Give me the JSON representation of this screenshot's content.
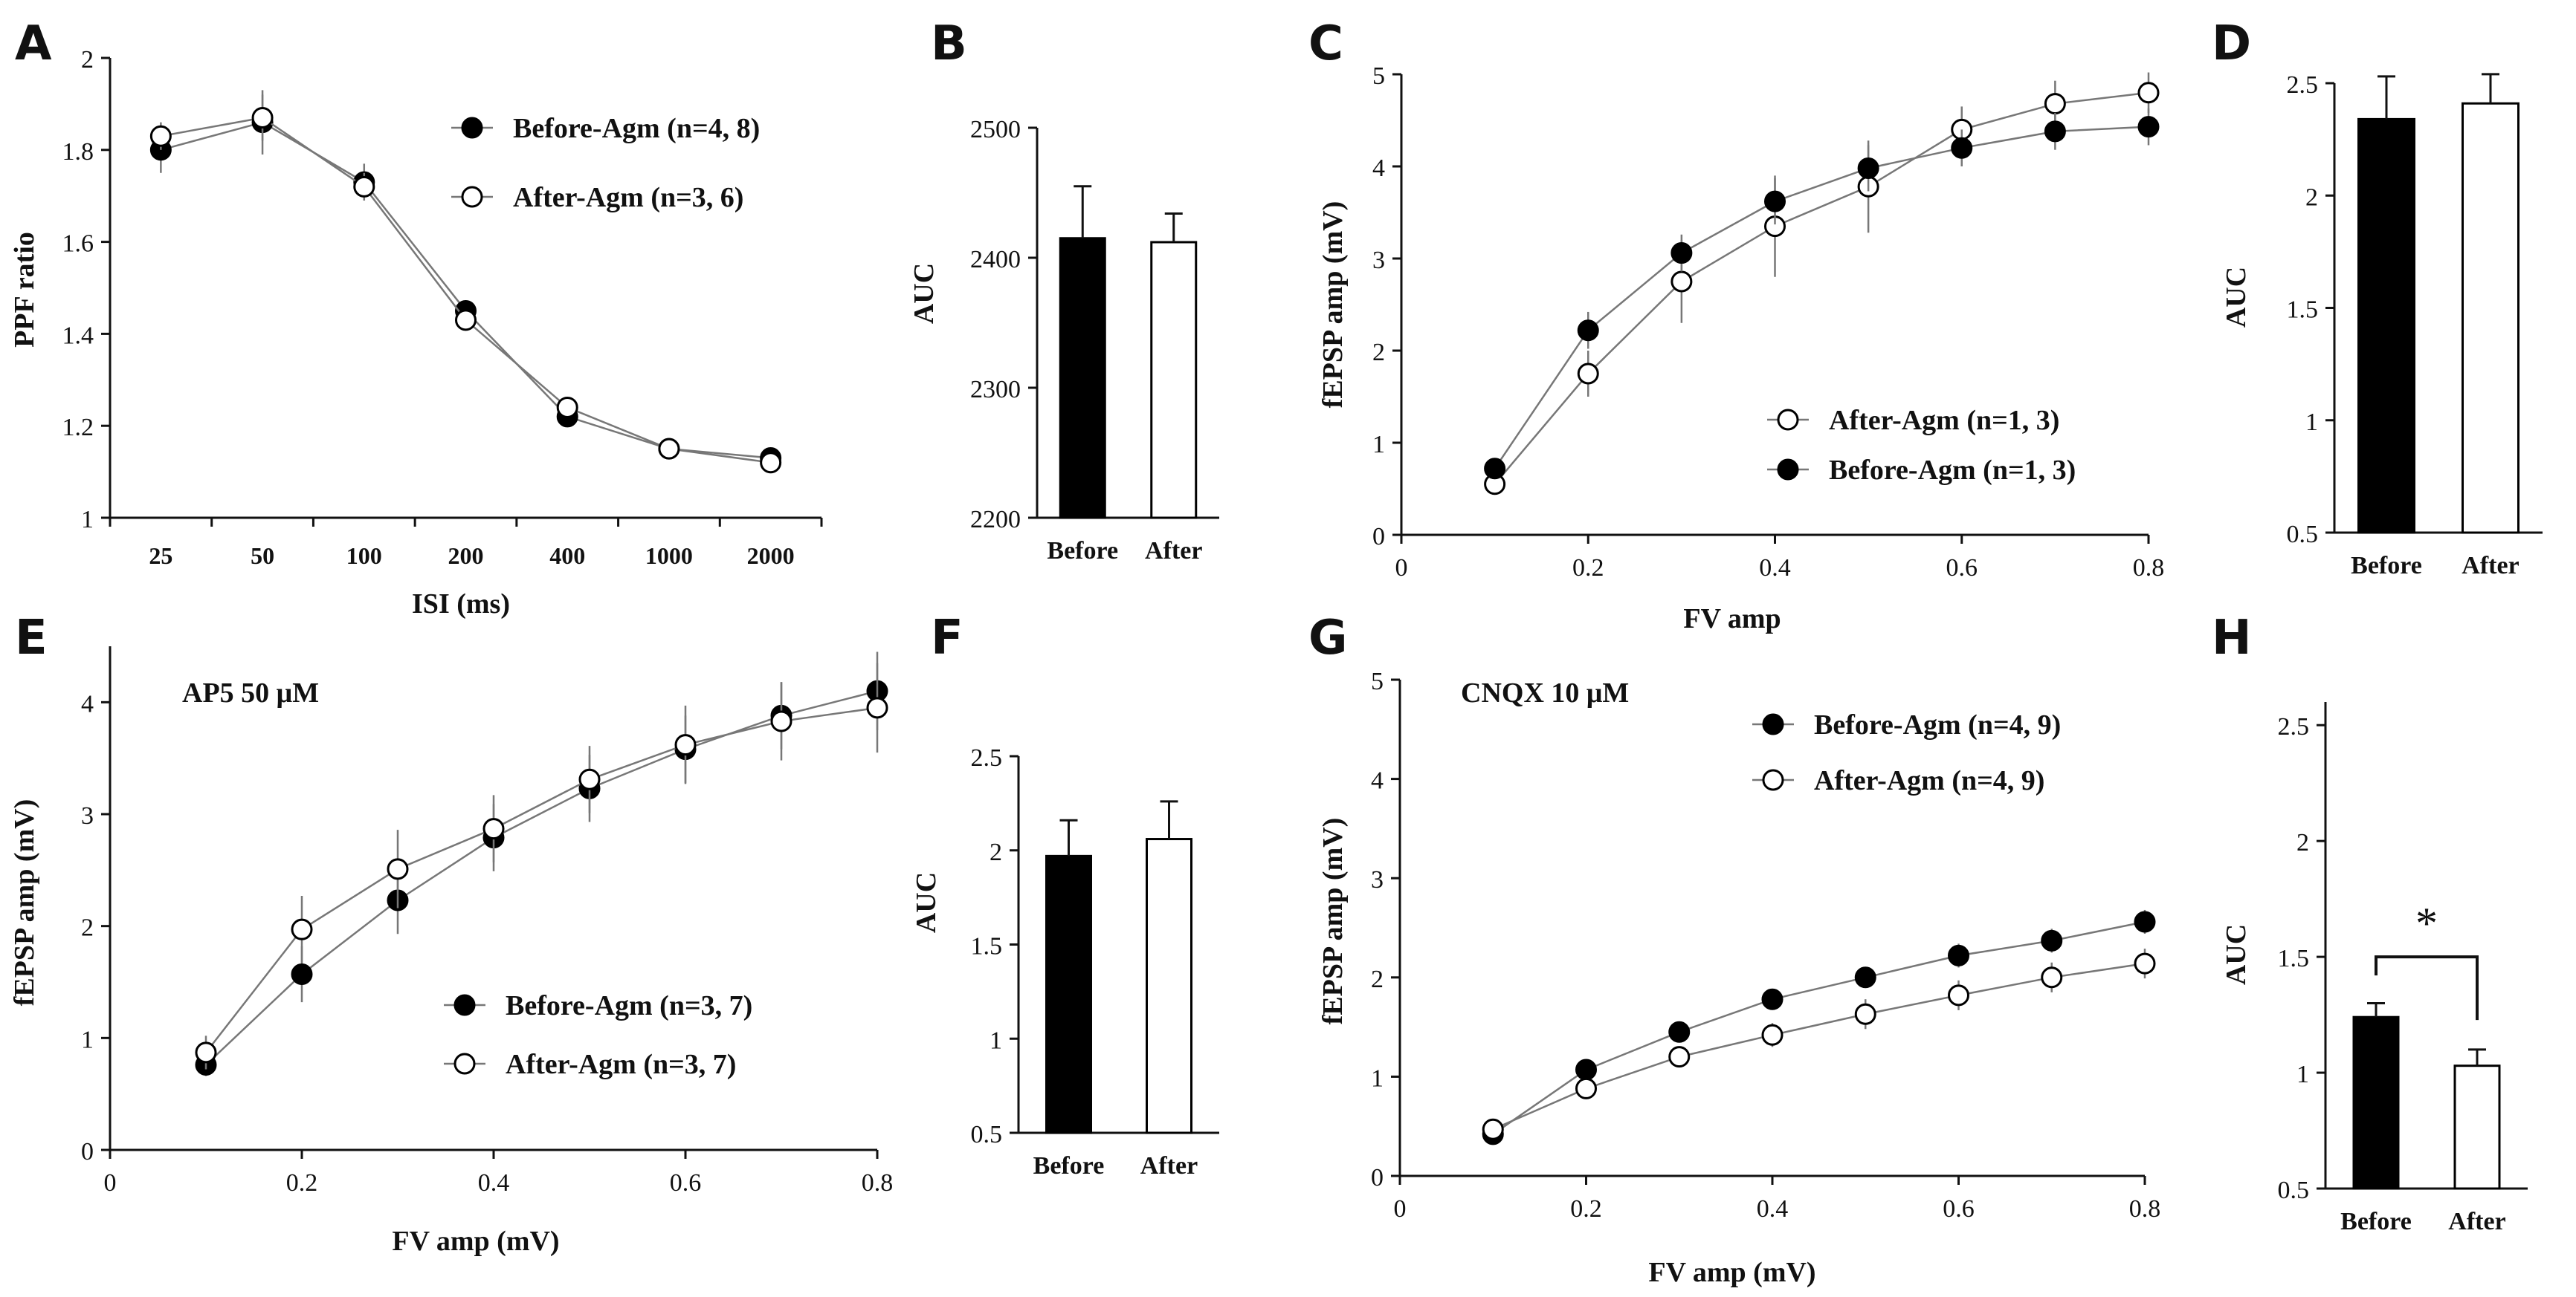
{
  "colors": {
    "ink": "#111111",
    "line": "#777777",
    "fill_before": "#000000",
    "fill_after": "#ffffff"
  },
  "chart_data": [
    {
      "panel": "A",
      "type": "line",
      "x": [
        "25",
        "50",
        "100",
        "200",
        "400",
        "1000",
        "2000"
      ],
      "xlabel": "ISI (ms)",
      "ylabel": "PPF ratio",
      "ylim": [
        1,
        2
      ],
      "yticks": [
        1,
        1.2,
        1.4,
        1.6,
        1.8,
        2
      ],
      "xticklabels": [
        "25",
        "50",
        "100",
        "200",
        "400",
        "1000",
        "2000"
      ],
      "series": [
        {
          "name": "Before-Agm (n=4, 8)",
          "marker": "filled",
          "y": [
            1.8,
            1.86,
            1.73,
            1.45,
            1.22,
            1.15,
            1.13
          ],
          "err": [
            0.05,
            0.07,
            0.04,
            0.02,
            0.02,
            0.01,
            0.01
          ]
        },
        {
          "name": "After-Agm (n=3, 6)",
          "marker": "open",
          "y": [
            1.83,
            1.87,
            1.72,
            1.43,
            1.24,
            1.15,
            1.12
          ],
          "err": [
            0.03,
            0.05,
            0.03,
            0.02,
            0.02,
            0.01,
            0.01
          ]
        }
      ],
      "legend": "top-right"
    },
    {
      "panel": "B",
      "type": "bar",
      "categories": [
        "Before",
        "After"
      ],
      "values": [
        2415,
        2412
      ],
      "err": [
        40,
        22
      ],
      "ylabel": "AUC",
      "ylim": [
        2200,
        2500
      ],
      "yticks": [
        2200,
        2300,
        2400,
        2500
      ],
      "yticklabels": [
        "2200",
        "2300",
        "2400",
        "2500"
      ]
    },
    {
      "panel": "C",
      "type": "line",
      "xlabel": "FV amp",
      "ylabel": "fEPSP amp (mV)",
      "xlim": [
        0,
        0.8
      ],
      "xticks": [
        0,
        0.2,
        0.4,
        0.6,
        0.8
      ],
      "xticklabels": [
        "0",
        "0.2",
        "0.4",
        "0.6",
        "0.8"
      ],
      "ylim": [
        0,
        5
      ],
      "yticks": [
        0,
        1,
        2,
        3,
        4,
        5
      ],
      "yticklabels": [
        "0",
        "1",
        "2",
        "3",
        "4",
        "5"
      ],
      "series": [
        {
          "name": "After-Agm (n=1, 3)",
          "marker": "open",
          "x": [
            0.1,
            0.2,
            0.3,
            0.4,
            0.5,
            0.6,
            0.7,
            0.8
          ],
          "y": [
            0.55,
            1.75,
            2.75,
            3.35,
            3.78,
            4.4,
            4.68,
            4.8
          ],
          "err": [
            0.05,
            0.25,
            0.45,
            0.55,
            0.5,
            0.25,
            0.25,
            0.22
          ]
        },
        {
          "name": "Before-Agm (n=1, 3)",
          "marker": "filled",
          "x": [
            0.1,
            0.2,
            0.3,
            0.4,
            0.5,
            0.6,
            0.7,
            0.8
          ],
          "y": [
            0.72,
            2.22,
            3.06,
            3.62,
            3.98,
            4.2,
            4.38,
            4.43
          ],
          "err": [
            0.05,
            0.2,
            0.2,
            0.25,
            0.25,
            0.2,
            0.2,
            0.2
          ]
        }
      ],
      "legend": "bottom-right"
    },
    {
      "panel": "D",
      "type": "bar",
      "categories": [
        "Before",
        "After"
      ],
      "values": [
        2.34,
        2.41
      ],
      "err": [
        0.19,
        0.13
      ],
      "ylabel": "AUC",
      "ylim": [
        0.5,
        2.5
      ],
      "yticks": [
        0.5,
        1,
        1.5,
        2,
        2.5
      ],
      "yticklabels": [
        "0.5",
        "1",
        "1.5",
        "2",
        "2.5"
      ]
    },
    {
      "panel": "E",
      "type": "line",
      "annotation": "AP5 50 μM",
      "xlabel": "FV amp (mV)",
      "ylabel": "fEPSP amp (mV)",
      "xlim": [
        0,
        0.8
      ],
      "xticks": [
        0,
        0.2,
        0.4,
        0.6,
        0.8
      ],
      "xticklabels": [
        "0",
        "0.2",
        "0.4",
        "0.6",
        "0.8"
      ],
      "ylim": [
        0,
        4.5
      ],
      "yticks": [
        0,
        1,
        2,
        3,
        4
      ],
      "yticklabels": [
        "0",
        "1",
        "2",
        "3",
        "4"
      ],
      "series": [
        {
          "name": "Before-Agm (n=3, 7)",
          "marker": "filled",
          "x": [
            0.1,
            0.2,
            0.3,
            0.4,
            0.5,
            0.6,
            0.7,
            0.8
          ],
          "y": [
            0.76,
            1.57,
            2.23,
            2.79,
            3.23,
            3.58,
            3.88,
            4.1
          ],
          "err": [
            0.1,
            0.25,
            0.3,
            0.3,
            0.3,
            0.3,
            0.3,
            0.35
          ]
        },
        {
          "name": "After-Agm (n=3, 7)",
          "marker": "open",
          "x": [
            0.1,
            0.2,
            0.3,
            0.4,
            0.5,
            0.6,
            0.7,
            0.8
          ],
          "y": [
            0.87,
            1.97,
            2.51,
            2.87,
            3.31,
            3.62,
            3.83,
            3.95
          ],
          "err": [
            0.15,
            0.3,
            0.35,
            0.3,
            0.3,
            0.35,
            0.35,
            0.4
          ]
        }
      ],
      "legend": "bottom-right"
    },
    {
      "panel": "F",
      "type": "bar",
      "categories": [
        "Before",
        "After"
      ],
      "values": [
        1.97,
        2.06
      ],
      "err": [
        0.19,
        0.2
      ],
      "ylabel": "AUC",
      "ylim": [
        0.5,
        2.5
      ],
      "yticks": [
        0.5,
        1,
        1.5,
        2,
        2.5
      ],
      "yticklabels": [
        "0.5",
        "1",
        "1.5",
        "2",
        "2.5"
      ]
    },
    {
      "panel": "G",
      "type": "line",
      "annotation": "CNQX 10 μM",
      "xlabel": "FV amp (mV)",
      "ylabel": "fEPSP  amp (mV)",
      "xlim": [
        0,
        0.8
      ],
      "xticks": [
        0,
        0.2,
        0.4,
        0.6,
        0.8
      ],
      "xticklabels": [
        "0",
        "0.2",
        "0.4",
        "0.6",
        "0.8"
      ],
      "ylim": [
        0,
        5
      ],
      "yticks": [
        0,
        1,
        2,
        3,
        4,
        5
      ],
      "yticklabels": [
        "0",
        "1",
        "2",
        "3",
        "4",
        "5"
      ],
      "series": [
        {
          "name": "Before-Agm (n=4, 9)",
          "marker": "filled",
          "x": [
            0.1,
            0.2,
            0.3,
            0.4,
            0.5,
            0.6,
            0.7,
            0.8
          ],
          "y": [
            0.42,
            1.07,
            1.45,
            1.78,
            2.0,
            2.22,
            2.37,
            2.56
          ],
          "err": [
            0.03,
            0.05,
            0.08,
            0.1,
            0.1,
            0.12,
            0.12,
            0.12
          ]
        },
        {
          "name": "After-Agm (n=4, 9)",
          "marker": "open",
          "x": [
            0.1,
            0.2,
            0.3,
            0.4,
            0.5,
            0.6,
            0.7,
            0.8
          ],
          "y": [
            0.47,
            0.88,
            1.2,
            1.42,
            1.63,
            1.82,
            2.0,
            2.14
          ],
          "err": [
            0.03,
            0.08,
            0.1,
            0.12,
            0.15,
            0.15,
            0.15,
            0.15
          ]
        }
      ],
      "legend": "top-right"
    },
    {
      "panel": "H",
      "type": "bar",
      "categories": [
        "Before",
        "After"
      ],
      "values": [
        1.24,
        1.03
      ],
      "err": [
        0.06,
        0.07
      ],
      "ylabel": "AUC",
      "ylim": [
        0.5,
        2.6
      ],
      "yticks": [
        0.5,
        1,
        1.5,
        2,
        2.5
      ],
      "yticklabels": [
        "0.5",
        "1",
        "1.5",
        "2",
        "2.5"
      ],
      "significance": {
        "between": [
          "Before",
          "After"
        ],
        "label": "*"
      }
    }
  ]
}
